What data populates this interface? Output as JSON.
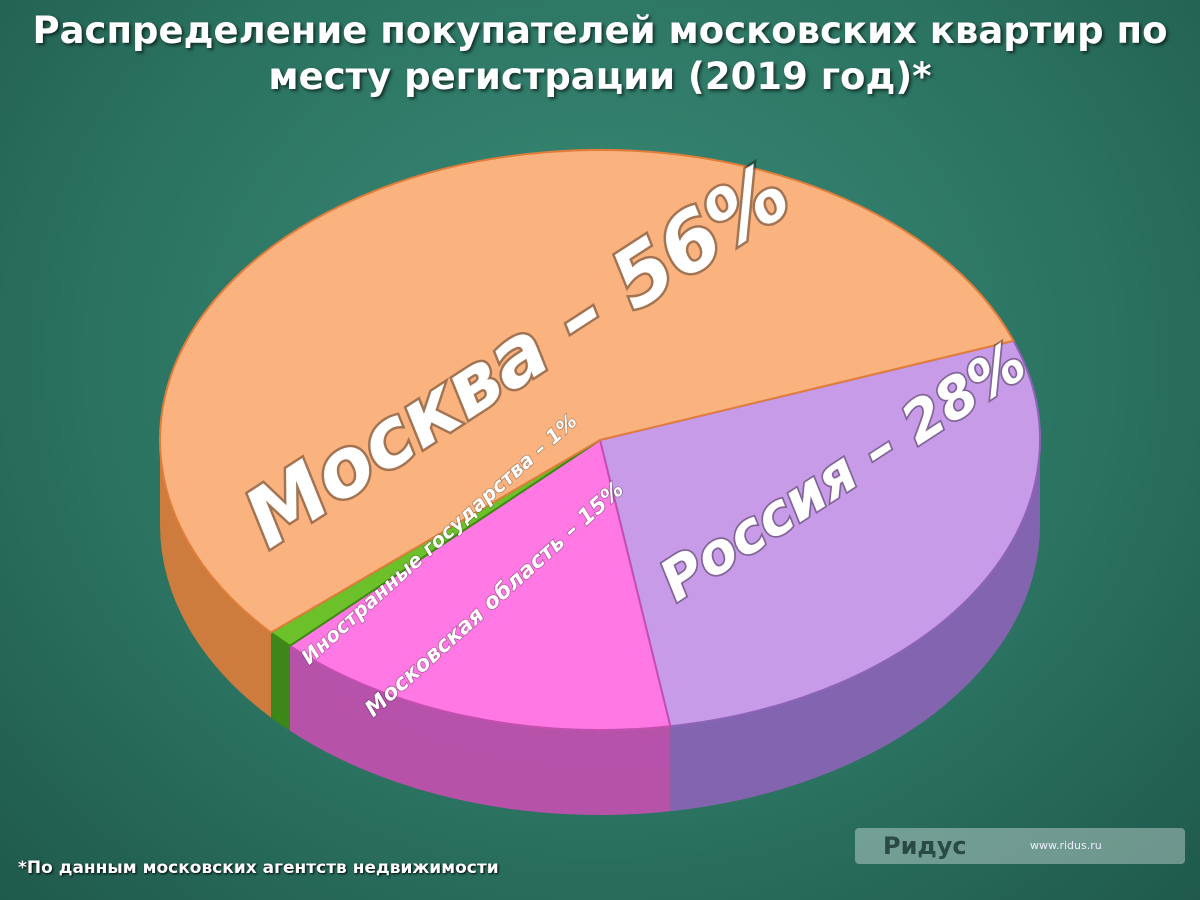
{
  "chart_data": {
    "type": "pie3d",
    "title": "Распределение покупателей московских квартир по месту регистрации (2019 год)*",
    "values": [
      28,
      15,
      1,
      56
    ],
    "value_labels": [
      "Россия – 28%",
      "Московская область – 15%",
      "Иностранные государства – 1%",
      "Москва – 56%"
    ],
    "colors": [
      "#c79be8",
      "#ff78e4",
      "#6cc02a",
      "#fab27f"
    ],
    "side_colors": [
      "#8d63b8",
      "#c54fb0",
      "#3f8a12",
      "#e07d3a"
    ],
    "footnote": "*По данным московских агентств недвижимости",
    "watermark": "Ридус",
    "watermark_url": "www.ridus.ru"
  }
}
